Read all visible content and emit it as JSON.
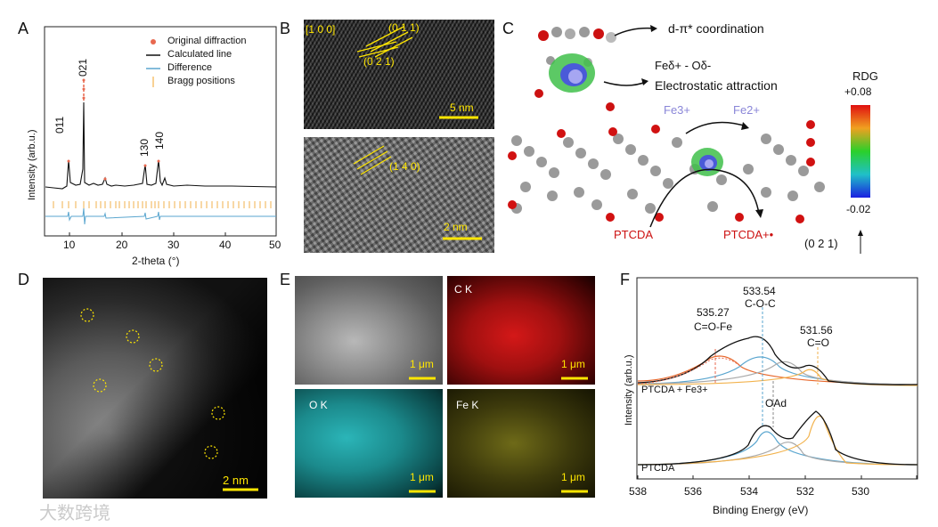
{
  "panels": {
    "A": "A",
    "B": "B",
    "C": "C",
    "D": "D",
    "E": "E",
    "F": "F"
  },
  "panelA": {
    "xlabel": "2-theta (°)",
    "ylabel": "Intensity (arb.u.)",
    "xticks": [
      "10",
      "20",
      "30",
      "40",
      "50"
    ],
    "legend": [
      "Original diffraction",
      "Calculated line",
      "Difference",
      "Bragg positions"
    ],
    "peak_labels": [
      "011",
      "021",
      "130",
      "140"
    ],
    "colors": {
      "original": "#e8684f",
      "calculated": "#111111",
      "difference": "#5aa6cf",
      "bragg": "#f2b24c"
    }
  },
  "panelB": {
    "top_labels": [
      "[1 0 0]",
      "(0 1 1)",
      "(0 2 1)"
    ],
    "top_scale": "5 nm",
    "bottom_label": "(1 4 0)",
    "bottom_scale": "2 nm",
    "label_color": "#ffe600"
  },
  "panelC": {
    "coordination": "d-π* coordination",
    "electrostatic_line1": "Feδ+ - Oδ-",
    "electrostatic_line2": "Electrostatic attraction",
    "fe3": "Fe3+",
    "fe2": "Fe2+",
    "ptcda": "PTCDA",
    "ptcda_plus": "PTCDA+•",
    "plane": "(0 2 1)",
    "rdg_title": "RDG",
    "rdg_max": "+0.08",
    "rdg_min": "-0.02"
  },
  "panelD": {
    "scale": "2 nm"
  },
  "panelE": {
    "maps": [
      {
        "label": "",
        "scale": "1 μm",
        "color": "#8c8c8c"
      },
      {
        "label": "C K",
        "scale": "1 μm",
        "color": "#cc1010"
      },
      {
        "label": "O K",
        "scale": "1 μm",
        "color": "#2bb5b8"
      },
      {
        "label": "Fe K",
        "scale": "1 μm",
        "color": "#b8b020"
      }
    ]
  },
  "panelF": {
    "xlabel": "Binding Energy (eV)",
    "ylabel": "Intensity (arb.u.)",
    "xticks": [
      "538",
      "536",
      "534",
      "532",
      "530"
    ],
    "peak1_value": "535.27",
    "peak1_name": "C=O-Fe",
    "peak2_value": "533.54",
    "peak2_name": "C-O-C",
    "peak3_value": "531.56",
    "peak3_name": "C=O",
    "oad": "OAd",
    "sample_top": "PTCDA + Fe3+",
    "sample_bottom": "PTCDA"
  },
  "watermark": "大数跨境"
}
